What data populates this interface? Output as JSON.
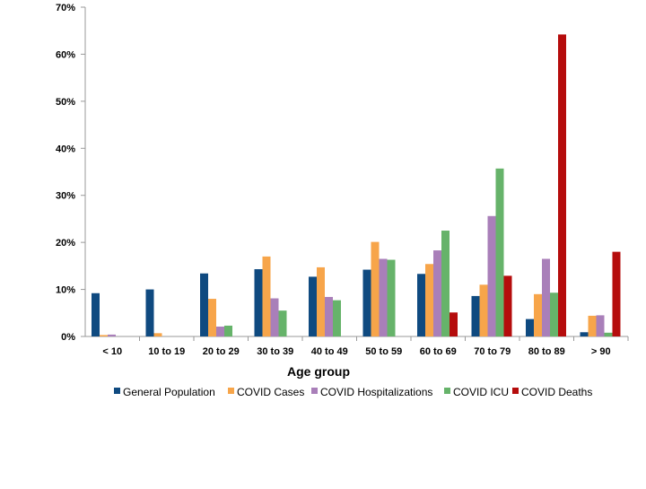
{
  "chart_data": {
    "type": "bar",
    "title": "",
    "xlabel": "Age group",
    "ylabel": "",
    "ylim": [
      0,
      70
    ],
    "yticks": [
      "0%",
      "10%",
      "20%",
      "30%",
      "40%",
      "50%",
      "60%",
      "70%"
    ],
    "grid": false,
    "legend_position": "bottom",
    "categories": [
      "< 10",
      "10 to 19",
      "20 to 29",
      "30 to 39",
      "40 to 49",
      "50 to 59",
      "60 to 69",
      "70 to 79",
      "80 to 89",
      "> 90"
    ],
    "series": [
      {
        "name": "General Population",
        "color": "#0f4a80",
        "values": [
          9.2,
          10.0,
          13.4,
          14.3,
          12.7,
          14.2,
          13.3,
          8.6,
          3.7,
          0.9
        ]
      },
      {
        "name": "COVID Cases",
        "color": "#f7a54a",
        "values": [
          0.3,
          0.7,
          8.0,
          17.0,
          14.7,
          20.1,
          15.4,
          11.0,
          9.0,
          4.4
        ]
      },
      {
        "name": "COVID Hospitalizations",
        "color": "#a97fb9",
        "values": [
          0.4,
          0.0,
          2.1,
          8.1,
          8.4,
          16.5,
          18.3,
          25.6,
          16.5,
          4.5
        ]
      },
      {
        "name": "COVID ICU",
        "color": "#66b36a",
        "values": [
          0.0,
          0.0,
          2.3,
          5.5,
          7.7,
          16.3,
          22.5,
          35.7,
          9.3,
          0.8
        ]
      },
      {
        "name": "COVID Deaths",
        "color": "#b50c0c",
        "values": [
          0.0,
          0.0,
          0.0,
          0.0,
          0.0,
          0.0,
          5.1,
          12.9,
          64.2,
          18.0
        ]
      }
    ]
  }
}
